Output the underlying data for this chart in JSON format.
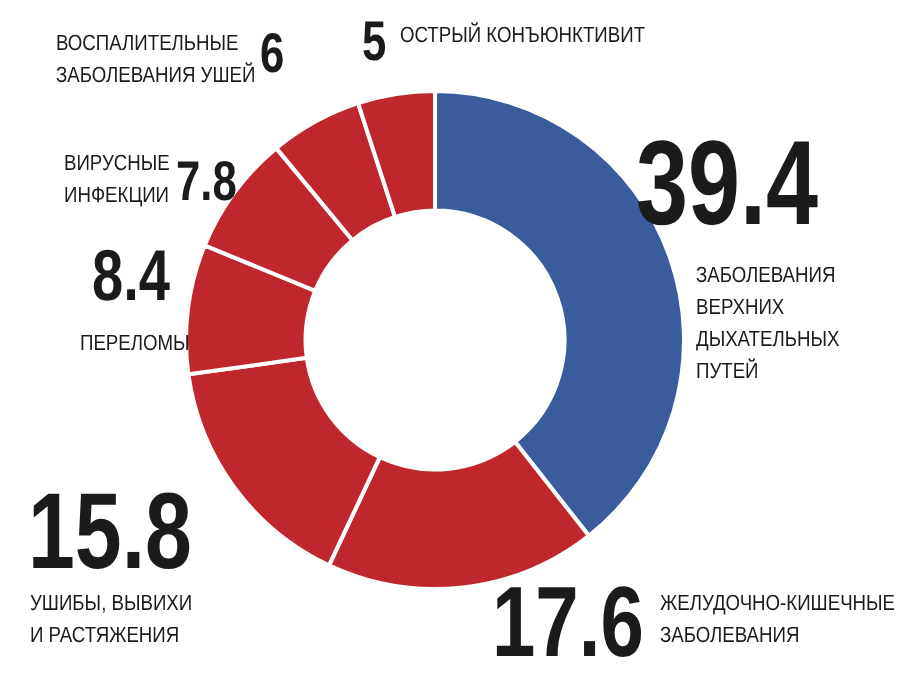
{
  "chart_data": {
    "type": "donut",
    "categories": [
      "ЗАБОЛЕВАНИЯ ВЕРХНИХ ДЫХАТЕЛЬНЫХ ПУТЕЙ",
      "ЖЕЛУДОЧНО-КИШЕЧНЫЕ ЗАБОЛЕВАНИЯ",
      "УШИБЫ, ВЫВИХИ И РАСТЯЖЕНИЯ",
      "ПЕРЕЛОМЫ",
      "ВИРУСНЫЕ ИНФЕКЦИИ",
      "ВОСПАЛИТЕЛЬНЫЕ ЗАБОЛЕВАНИЯ УШЕЙ",
      "ОСТРЫЙ КОНЪЮНКТИВИТ"
    ],
    "values": [
      39.4,
      17.6,
      15.8,
      8.4,
      7.8,
      6,
      5
    ],
    "colors": [
      "#3b5c9c",
      "#c0272d",
      "#c0272d",
      "#c0272d",
      "#c0272d",
      "#c0272d",
      "#c0272d"
    ],
    "data_labels": true
  }
}
